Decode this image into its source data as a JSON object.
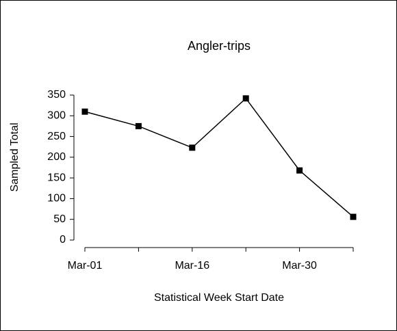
{
  "chart_data": {
    "type": "line",
    "title": "Angler-trips",
    "x_label": "Statistical Week Start Date",
    "y_label": "Sampled Total",
    "categories": [
      "Mar-01",
      null,
      "Mar-16",
      null,
      "Mar-30",
      null
    ],
    "values": [
      310,
      275,
      223,
      342,
      168,
      56
    ],
    "color": "#000000",
    "ylim": [
      0,
      350
    ],
    "yticks": [
      0,
      50,
      100,
      150,
      200,
      250,
      300,
      350
    ],
    "grid": false
  }
}
